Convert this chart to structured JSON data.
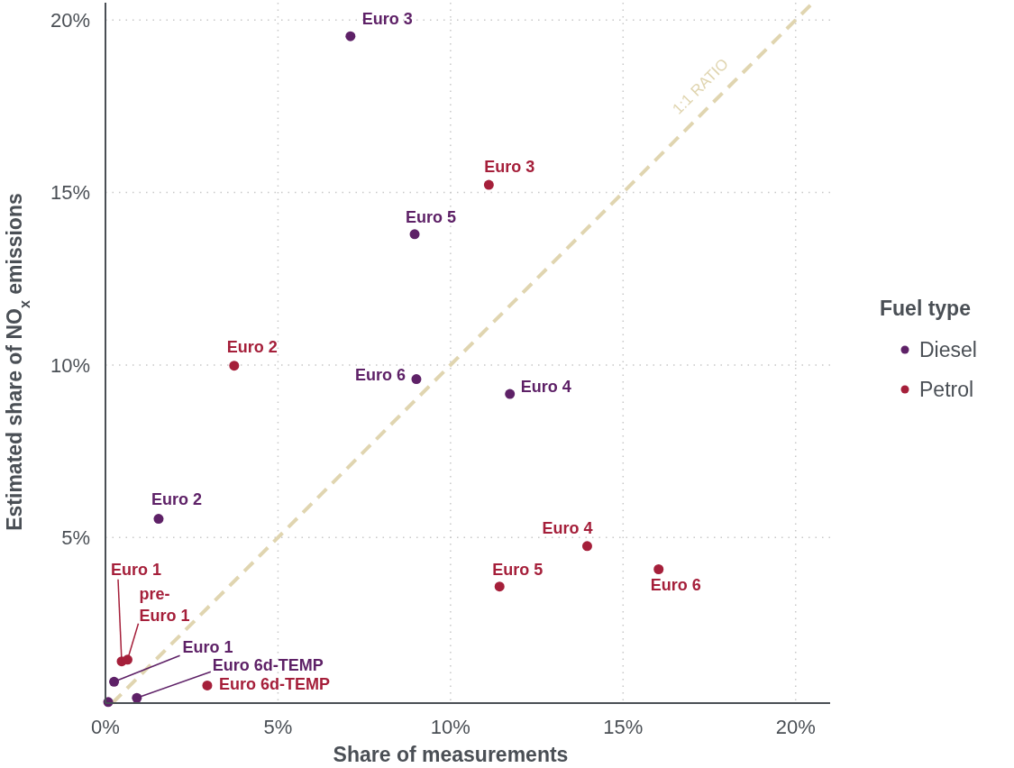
{
  "chart_data": {
    "type": "scatter",
    "xlabel": "Share of measurements",
    "ylabel": "Estimated share of NO$_{x}$ emissions",
    "legend_title": "Fuel type",
    "legend": "right",
    "grid": true,
    "marker": "circle",
    "xlim": [
      0,
      21
    ],
    "ylim": [
      0.2,
      20.5
    ],
    "xticks": [
      {
        "value": 0,
        "label": "0%"
      },
      {
        "value": 5,
        "label": "5%"
      },
      {
        "value": 10,
        "label": "10%"
      },
      {
        "value": 15,
        "label": "15%"
      },
      {
        "value": 20,
        "label": "20%"
      }
    ],
    "yticks": [
      {
        "value": 5,
        "label": "5%"
      },
      {
        "value": 10,
        "label": "10%"
      },
      {
        "value": 15,
        "label": "15%"
      },
      {
        "value": 20,
        "label": "20%"
      }
    ],
    "series": [
      {
        "name": "Diesel",
        "color": "#5e2167",
        "x": [
          7.1,
          8.96,
          9.01,
          11.72,
          1.54,
          0.25,
          0.91,
          0.08
        ],
        "values": [
          19.53,
          13.79,
          9.59,
          9.16,
          5.54,
          0.82,
          0.35,
          0.23
        ]
      },
      {
        "name": "Petrol",
        "color": "#a51f3a",
        "x": [
          11.11,
          3.73,
          13.96,
          11.42,
          16.03,
          0.47,
          0.64,
          2.95
        ],
        "values": [
          15.22,
          9.98,
          4.75,
          3.58,
          4.08,
          1.41,
          1.46,
          0.71
        ]
      },
      {
        "name": "1:1 RATIO",
        "type": "line",
        "color": "#e0d5b0",
        "line_style": "dashed",
        "marker": "none",
        "x": [
          0.2,
          20.5
        ],
        "values": [
          0.2,
          20.5
        ]
      }
    ],
    "annotations": [
      {
        "text": "Euro 3",
        "x": 7.1,
        "y": 19.53
      },
      {
        "text": "Euro 5",
        "x": 8.96,
        "y": 13.79
      },
      {
        "text": "Euro 6",
        "x": 9.01,
        "y": 9.59
      },
      {
        "text": "Euro 4",
        "x": 11.72,
        "y": 9.16
      },
      {
        "text": "Euro 2",
        "x": 1.54,
        "y": 5.54
      },
      {
        "text": "Euro 1",
        "x": 0.25,
        "y": 0.82
      },
      {
        "text": "Euro 6d-TEMP",
        "x": 0.91,
        "y": 0.35
      },
      {
        "text": "Euro 3",
        "x": 11.11,
        "y": 15.22
      },
      {
        "text": "Euro 2",
        "x": 3.73,
        "y": 9.98
      },
      {
        "text": "Euro 4",
        "x": 13.96,
        "y": 4.75
      },
      {
        "text": "Euro 5",
        "x": 11.42,
        "y": 3.58
      },
      {
        "text": "Euro 6",
        "x": 16.03,
        "y": 4.08
      },
      {
        "text": "Euro 1",
        "x": 0.47,
        "y": 1.41
      },
      {
        "text": "pre-Euro 1",
        "x": 0.64,
        "y": 1.46
      },
      {
        "text": "Euro 6d-TEMP",
        "x": 2.95,
        "y": 0.71
      }
    ]
  }
}
